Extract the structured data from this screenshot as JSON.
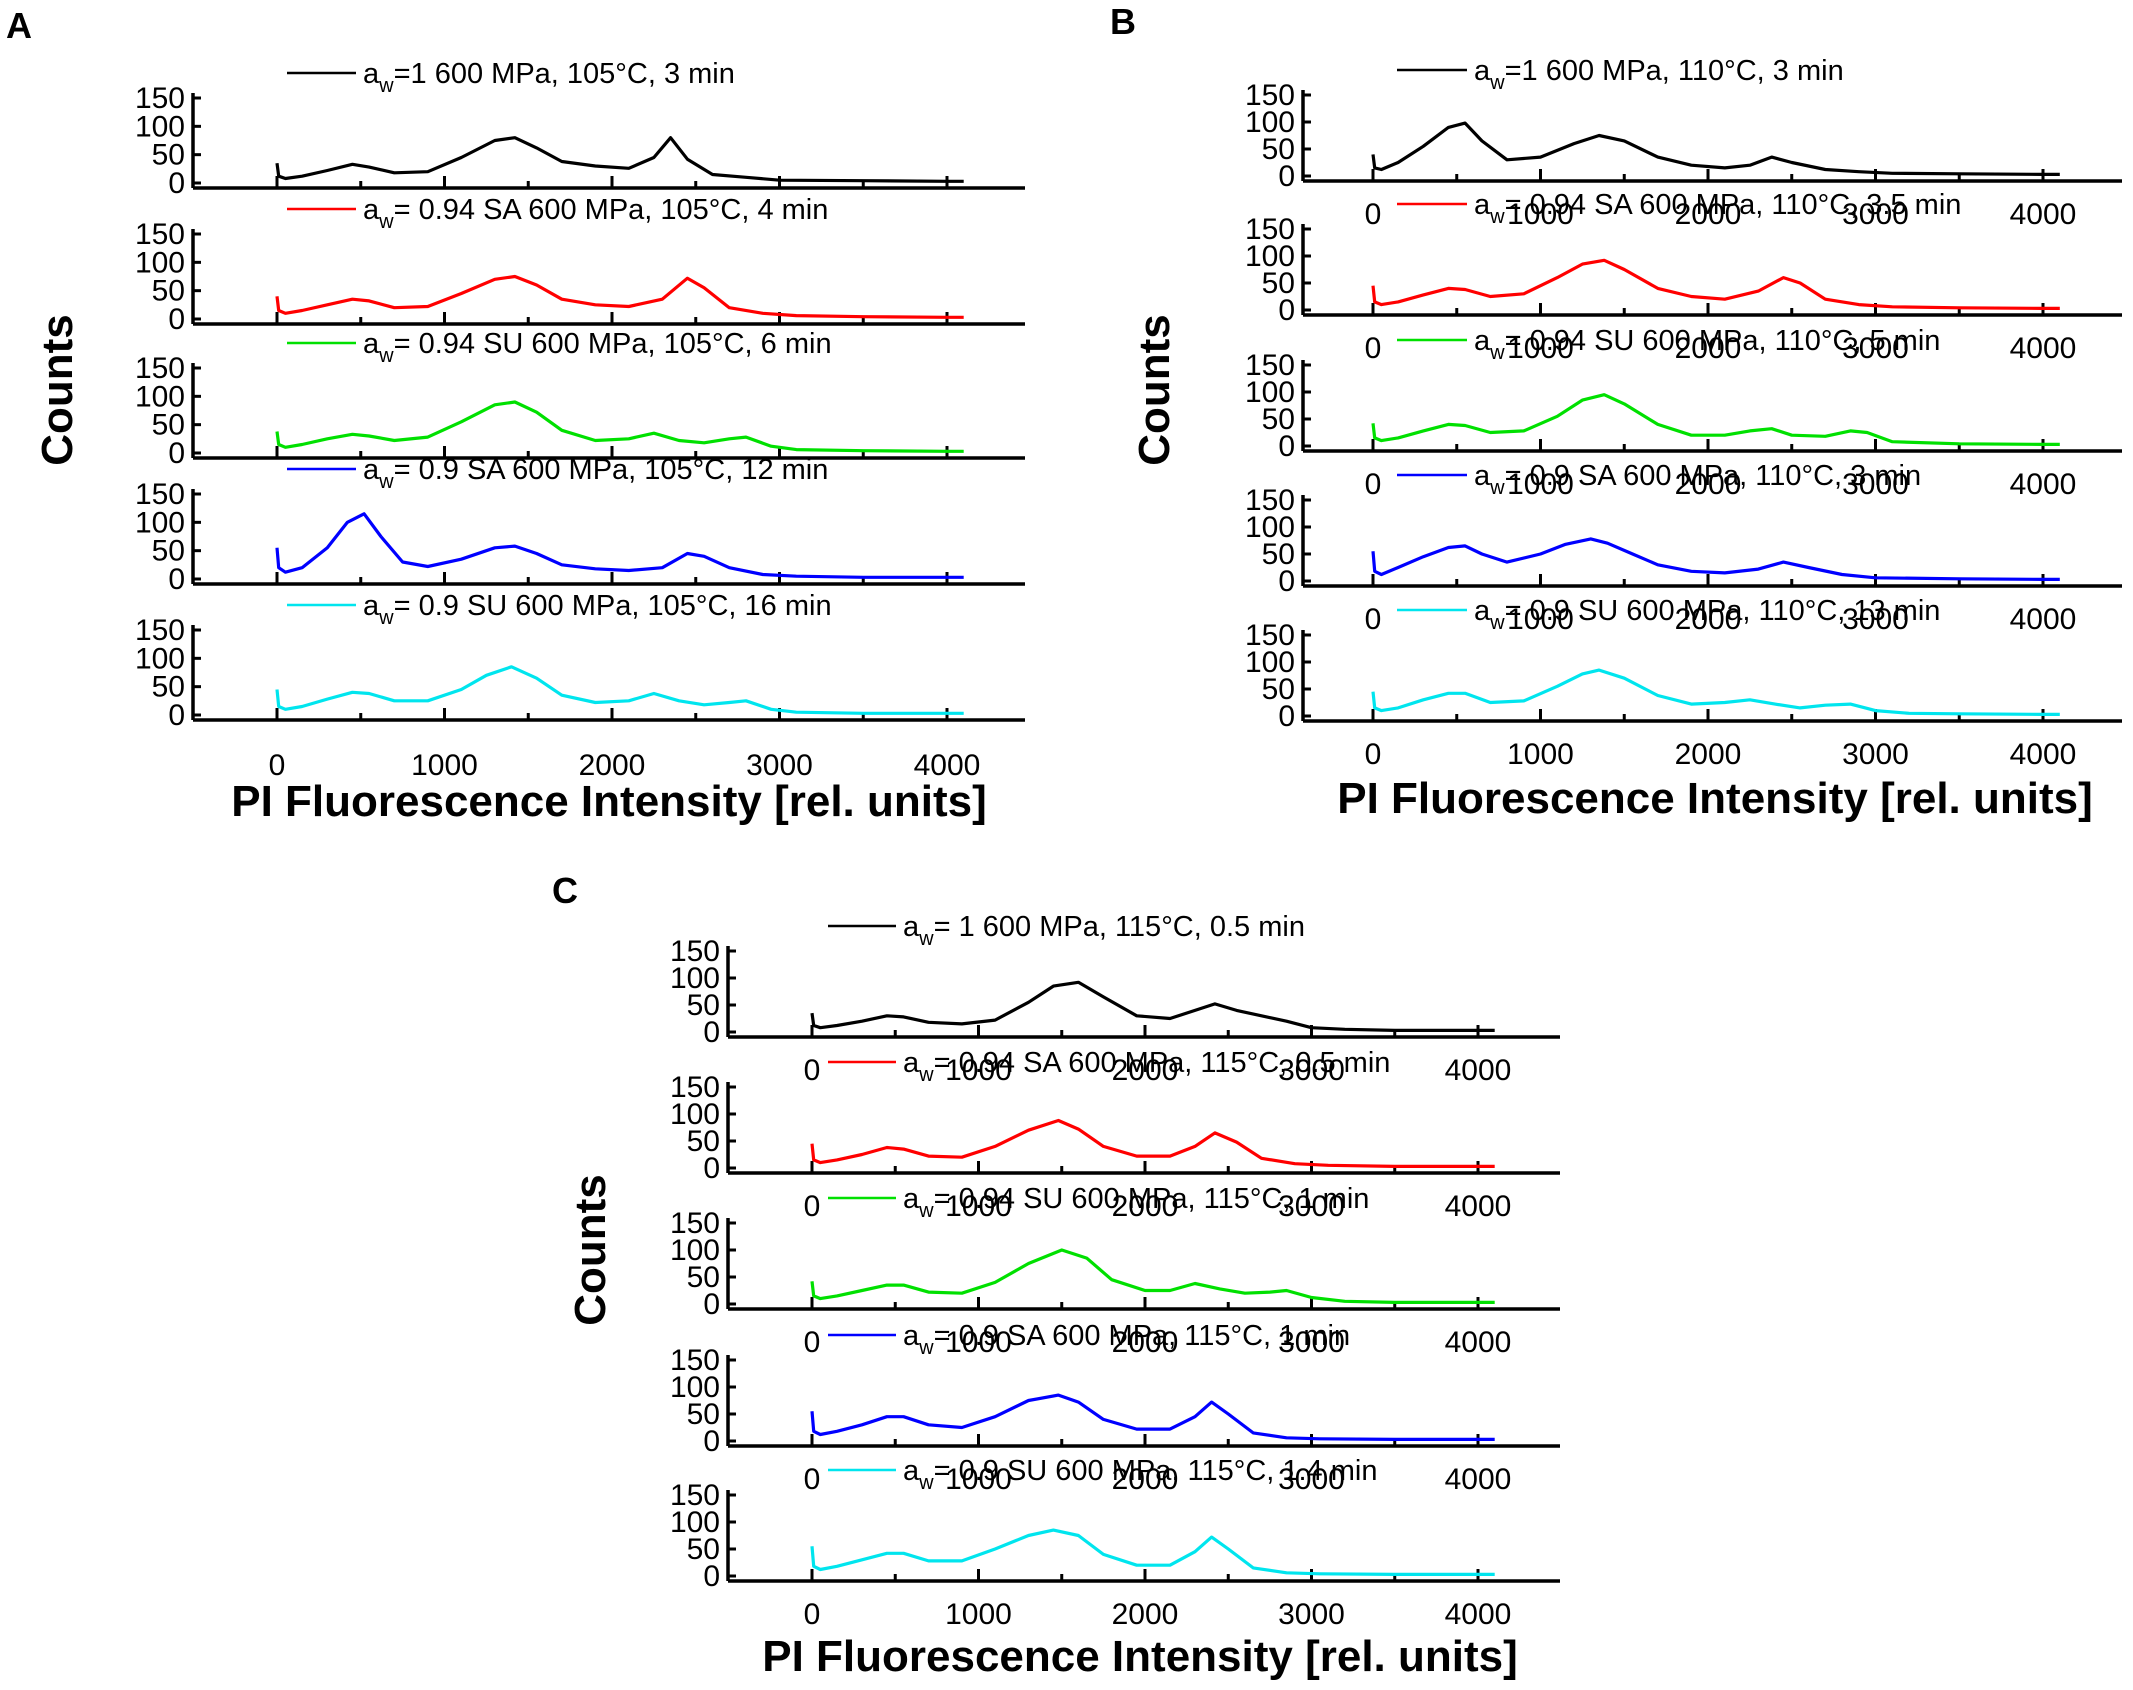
{
  "figure_labels": {
    "panel_a": "A",
    "panel_b": "B",
    "panel_c": "C"
  },
  "series_colors": [
    "#000000",
    "#ff0000",
    "#00e000",
    "#0000ff",
    "#00e5ee"
  ],
  "chart_data": [
    {
      "type": "line",
      "panel": "A",
      "ylabel": "Counts",
      "xlabel": "PI Fluorescence Intensity [rel. units]",
      "xlim": [
        -500,
        4500
      ],
      "ylim": [
        0,
        150
      ],
      "x_ticks": [
        "0",
        "1000",
        "2000",
        "3000",
        "4000"
      ],
      "y_ticks": [
        "0",
        "50",
        "100",
        "150"
      ],
      "series": [
        {
          "name_main": "a",
          "name_sub": "w",
          "name_rest": "=1 600 MPa, 105°C, 3 min",
          "color": "#000000",
          "x": [
            0,
            10,
            50,
            150,
            300,
            450,
            550,
            700,
            900,
            1100,
            1300,
            1420,
            1550,
            1700,
            1900,
            2100,
            2250,
            2350,
            2450,
            2600,
            2800,
            3000,
            3500,
            4000,
            4100
          ],
          "y": [
            35,
            12,
            8,
            12,
            22,
            33,
            28,
            18,
            20,
            45,
            75,
            80,
            62,
            38,
            30,
            26,
            45,
            80,
            42,
            15,
            10,
            5,
            4,
            3,
            3
          ]
        },
        {
          "name_main": "a",
          "name_sub": "w",
          "name_rest": "= 0.94 SA 600 MPa, 105°C, 4 min",
          "color": "#ff0000",
          "x": [
            0,
            10,
            50,
            150,
            300,
            450,
            550,
            700,
            900,
            1100,
            1300,
            1420,
            1550,
            1700,
            1900,
            2100,
            2300,
            2450,
            2550,
            2700,
            2900,
            3100,
            3500,
            4000,
            4100
          ],
          "y": [
            40,
            15,
            10,
            15,
            25,
            35,
            32,
            20,
            22,
            45,
            70,
            75,
            60,
            35,
            25,
            22,
            35,
            72,
            55,
            20,
            10,
            6,
            4,
            3,
            3
          ]
        },
        {
          "name_main": "a",
          "name_sub": "w",
          "name_rest": "= 0.94 SU 600 MPa, 105°C, 6 min",
          "color": "#00e000",
          "x": [
            0,
            10,
            50,
            150,
            300,
            450,
            550,
            700,
            900,
            1100,
            1300,
            1420,
            1550,
            1700,
            1900,
            2100,
            2250,
            2400,
            2550,
            2700,
            2800,
            2950,
            3100,
            3500,
            4000,
            4100
          ],
          "y": [
            38,
            15,
            10,
            15,
            25,
            33,
            30,
            22,
            28,
            55,
            85,
            90,
            72,
            40,
            22,
            25,
            35,
            22,
            18,
            25,
            28,
            12,
            6,
            4,
            3,
            3
          ]
        },
        {
          "name_main": "a",
          "name_sub": "w",
          "name_rest": "= 0.9 SA 600 MPa, 105°C, 12 min",
          "color": "#0000ff",
          "x": [
            0,
            10,
            50,
            150,
            300,
            420,
            520,
            620,
            750,
            900,
            1100,
            1300,
            1420,
            1550,
            1700,
            1900,
            2100,
            2300,
            2450,
            2550,
            2700,
            2900,
            3100,
            3500,
            4000,
            4100
          ],
          "y": [
            55,
            20,
            12,
            20,
            55,
            100,
            115,
            75,
            30,
            22,
            35,
            55,
            58,
            45,
            25,
            18,
            15,
            20,
            45,
            40,
            20,
            8,
            5,
            3,
            3,
            3
          ]
        },
        {
          "name_main": "a",
          "name_sub": "w",
          "name_rest": "= 0.9 SU 600 MPa, 105°C, 16 min",
          "color": "#00e5ee",
          "x": [
            0,
            10,
            50,
            150,
            300,
            450,
            550,
            700,
            900,
            1100,
            1250,
            1400,
            1550,
            1700,
            1900,
            2100,
            2250,
            2400,
            2550,
            2700,
            2800,
            2950,
            3100,
            3500,
            4000,
            4100
          ],
          "y": [
            45,
            15,
            10,
            15,
            28,
            40,
            38,
            25,
            25,
            45,
            70,
            85,
            65,
            35,
            22,
            25,
            38,
            25,
            18,
            22,
            25,
            10,
            5,
            3,
            3,
            3
          ]
        }
      ]
    },
    {
      "type": "line",
      "panel": "B",
      "ylabel": "Counts",
      "xlabel": "PI Fluorescence Intensity [rel. units]",
      "xlim": [
        -500,
        4500
      ],
      "ylim": [
        0,
        150
      ],
      "x_ticks": [
        "0",
        "1000",
        "2000",
        "3000",
        "4000"
      ],
      "y_ticks": [
        "0",
        "50",
        "100",
        "150"
      ],
      "series": [
        {
          "name_main": "a",
          "name_sub": "w",
          "name_rest": "=1 600 MPa, 110°C, 3 min",
          "color": "#000000",
          "x": [
            0,
            10,
            50,
            150,
            300,
            450,
            550,
            650,
            800,
            1000,
            1200,
            1350,
            1500,
            1700,
            1900,
            2100,
            2250,
            2380,
            2500,
            2700,
            2900,
            3100,
            3500,
            4000,
            4100
          ],
          "y": [
            40,
            15,
            12,
            25,
            55,
            90,
            98,
            65,
            30,
            35,
            60,
            75,
            65,
            35,
            20,
            15,
            20,
            35,
            25,
            12,
            8,
            5,
            4,
            3,
            3
          ]
        },
        {
          "name_main": "a",
          "name_sub": "w",
          "name_rest": "= 0.94 SA 600 MPa, 110°C, 3.5 min",
          "color": "#ff0000",
          "x": [
            0,
            10,
            50,
            150,
            300,
            450,
            550,
            700,
            900,
            1100,
            1250,
            1380,
            1500,
            1700,
            1900,
            2100,
            2300,
            2450,
            2550,
            2700,
            2900,
            3100,
            3500,
            4000,
            4100
          ],
          "y": [
            45,
            15,
            10,
            15,
            28,
            40,
            38,
            25,
            30,
            60,
            85,
            92,
            75,
            40,
            25,
            20,
            35,
            60,
            50,
            20,
            10,
            6,
            4,
            3,
            3
          ]
        },
        {
          "name_main": "a",
          "name_sub": "w",
          "name_rest": "= 0.94 SU 600 MPa, 110°C, 5 min",
          "color": "#00e000",
          "x": [
            0,
            10,
            50,
            150,
            300,
            450,
            550,
            700,
            900,
            1100,
            1250,
            1380,
            1500,
            1700,
            1900,
            2100,
            2250,
            2380,
            2500,
            2700,
            2850,
            2950,
            3100,
            3500,
            4000,
            4100
          ],
          "y": [
            42,
            15,
            10,
            15,
            28,
            40,
            38,
            25,
            28,
            55,
            85,
            95,
            78,
            40,
            20,
            20,
            28,
            32,
            20,
            18,
            28,
            25,
            8,
            4,
            3,
            3
          ]
        },
        {
          "name_main": "a",
          "name_sub": "w",
          "name_rest": "= 0.9 SA 600 MPa, 110°C, 3 min",
          "color": "#0000ff",
          "x": [
            0,
            10,
            50,
            150,
            300,
            450,
            550,
            650,
            800,
            1000,
            1150,
            1300,
            1400,
            1550,
            1700,
            1900,
            2100,
            2300,
            2450,
            2600,
            2800,
            3000,
            3500,
            4000,
            4100
          ],
          "y": [
            55,
            18,
            12,
            25,
            45,
            62,
            65,
            50,
            35,
            50,
            68,
            78,
            70,
            50,
            30,
            18,
            15,
            22,
            35,
            25,
            12,
            6,
            4,
            3,
            3
          ]
        },
        {
          "name_main": "a",
          "name_sub": "w",
          "name_rest": "= 0.9 SU 600 MPa, 110°C, 13 min",
          "color": "#00e5ee",
          "x": [
            0,
            10,
            50,
            150,
            300,
            450,
            550,
            700,
            900,
            1100,
            1250,
            1350,
            1500,
            1700,
            1900,
            2100,
            2250,
            2400,
            2550,
            2700,
            2850,
            3000,
            3200,
            3500,
            4000,
            4100
          ],
          "y": [
            45,
            15,
            10,
            15,
            30,
            42,
            42,
            25,
            28,
            55,
            78,
            85,
            70,
            38,
            22,
            25,
            30,
            22,
            15,
            20,
            22,
            10,
            5,
            4,
            3,
            3
          ]
        }
      ]
    },
    {
      "type": "line",
      "panel": "C",
      "ylabel": "Counts",
      "xlabel": "PI Fluorescence Intensity [rel. units]",
      "xlim": [
        -500,
        4500
      ],
      "ylim": [
        0,
        150
      ],
      "x_ticks": [
        "0",
        "1000",
        "2000",
        "3000",
        "4000"
      ],
      "y_ticks": [
        "0",
        "50",
        "100",
        "150"
      ],
      "series": [
        {
          "name_main": "a",
          "name_sub": "w",
          "name_rest": "= 1 600 MPa, 115°C, 0.5 min",
          "color": "#000000",
          "x": [
            0,
            10,
            50,
            150,
            300,
            450,
            550,
            700,
            900,
            1100,
            1300,
            1450,
            1600,
            1750,
            1950,
            2150,
            2300,
            2420,
            2550,
            2700,
            2850,
            3000,
            3200,
            3500,
            4000,
            4100
          ],
          "y": [
            35,
            12,
            8,
            12,
            20,
            30,
            28,
            18,
            15,
            22,
            55,
            85,
            92,
            65,
            30,
            25,
            40,
            52,
            40,
            30,
            20,
            8,
            5,
            3,
            3,
            3
          ]
        },
        {
          "name_main": "a",
          "name_sub": "w",
          "name_rest": "= 0.94 SA 600 MPa, 115°C, 0.5 min",
          "color": "#ff0000",
          "x": [
            0,
            10,
            50,
            150,
            300,
            450,
            550,
            700,
            900,
            1100,
            1300,
            1480,
            1600,
            1750,
            1950,
            2150,
            2300,
            2420,
            2550,
            2700,
            2900,
            3100,
            3500,
            4000,
            4100
          ],
          "y": [
            45,
            15,
            10,
            15,
            25,
            38,
            35,
            22,
            20,
            40,
            70,
            88,
            72,
            40,
            22,
            22,
            40,
            65,
            48,
            18,
            8,
            5,
            3,
            3,
            3
          ]
        },
        {
          "name_main": "a",
          "name_sub": "w",
          "name_rest": "= 0.94 SU 600 MPa, 115°C, 1 min",
          "color": "#00e000",
          "x": [
            0,
            10,
            50,
            150,
            300,
            450,
            550,
            700,
            900,
            1100,
            1300,
            1500,
            1650,
            1800,
            2000,
            2150,
            2300,
            2450,
            2600,
            2750,
            2850,
            3000,
            3200,
            3500,
            4000,
            4100
          ],
          "y": [
            42,
            15,
            10,
            15,
            25,
            35,
            35,
            22,
            20,
            40,
            75,
            100,
            85,
            45,
            25,
            25,
            38,
            28,
            20,
            22,
            25,
            12,
            5,
            3,
            3,
            3
          ]
        },
        {
          "name_main": "a",
          "name_sub": "w",
          "name_rest": "= 0.9 SA 600 MPa, 115°C, 1 min",
          "color": "#0000ff",
          "x": [
            0,
            10,
            50,
            150,
            300,
            450,
            550,
            700,
            900,
            1100,
            1300,
            1480,
            1600,
            1750,
            1950,
            2150,
            2300,
            2400,
            2500,
            2650,
            2850,
            3050,
            3500,
            4000,
            4100
          ],
          "y": [
            55,
            18,
            12,
            18,
            30,
            45,
            45,
            30,
            25,
            45,
            75,
            85,
            72,
            40,
            22,
            22,
            45,
            72,
            50,
            15,
            6,
            4,
            3,
            3,
            3
          ]
        },
        {
          "name_main": "a",
          "name_sub": "w",
          "name_rest": "= 0.9 SU 600 MPa, 115°C, 1.4 min",
          "color": "#00e5ee",
          "x": [
            0,
            10,
            50,
            150,
            300,
            450,
            550,
            700,
            900,
            1100,
            1300,
            1450,
            1600,
            1750,
            1950,
            2150,
            2300,
            2400,
            2500,
            2650,
            2850,
            3050,
            3500,
            4000,
            4100
          ],
          "y": [
            55,
            18,
            12,
            18,
            30,
            42,
            42,
            28,
            28,
            50,
            75,
            85,
            75,
            40,
            20,
            20,
            45,
            72,
            50,
            15,
            6,
            4,
            3,
            3,
            3
          ]
        }
      ]
    }
  ]
}
